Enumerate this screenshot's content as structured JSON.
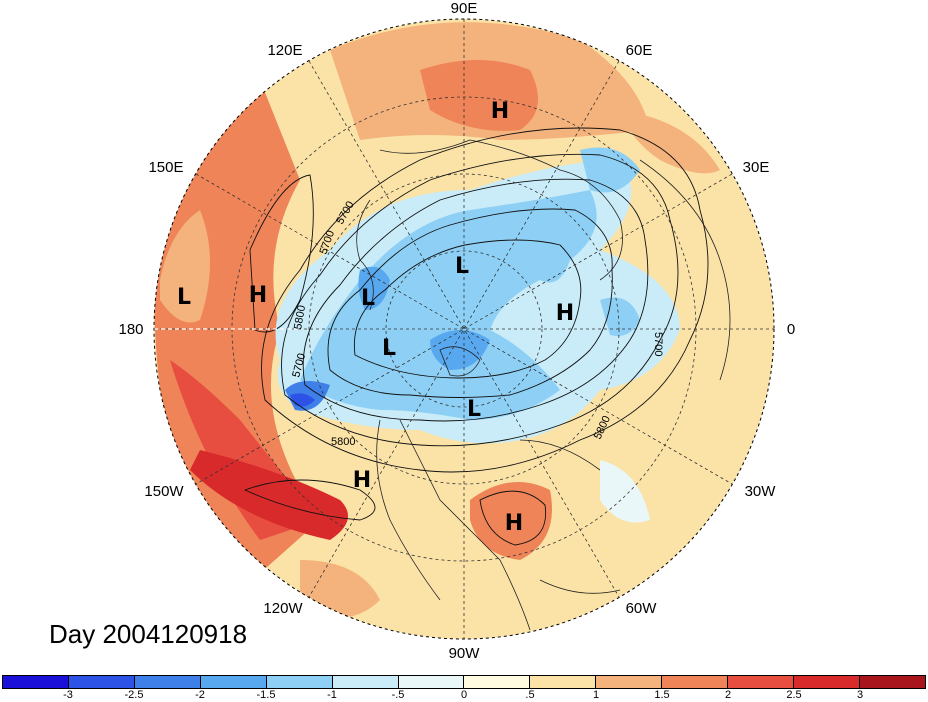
{
  "title": "Day 2004120918",
  "longitude_labels": [
    "90E",
    "60E",
    "30E",
    "0",
    "30W",
    "60W",
    "90W",
    "120W",
    "150W",
    "180",
    "150E",
    "120E"
  ],
  "contour_labels": [
    "5700",
    "5800",
    "5700",
    "5800",
    "5700",
    "5800",
    "5700"
  ],
  "pressure_centers": [
    {
      "type": "H",
      "region": "Siberia"
    },
    {
      "type": "H",
      "region": "Western Russia"
    },
    {
      "type": "H",
      "region": "Bering Sea"
    },
    {
      "type": "L",
      "region": "Kamchatka / North Pacific"
    },
    {
      "type": "L",
      "region": "Arctic Ocean"
    },
    {
      "type": "L",
      "region": "East Siberian Sea"
    },
    {
      "type": "L",
      "region": "Beaufort Sea"
    },
    {
      "type": "L",
      "region": "Baffin Bay"
    },
    {
      "type": "H",
      "region": "Eastern North Pacific"
    },
    {
      "type": "H",
      "region": "Western Atlantic / Florida"
    }
  ],
  "colorbar": {
    "colors": [
      "#1a10d8",
      "#2d52e6",
      "#3f7fe8",
      "#58a8ef",
      "#8ed0f5",
      "#c9ecf8",
      "#eaf7f8",
      "#fffbe1",
      "#fbe3a8",
      "#f4b27c",
      "#ee8458",
      "#e84e3f",
      "#d92a2b",
      "#a8151d"
    ],
    "tick_labels": [
      "-3",
      "-2.5",
      "-2",
      "-1.5",
      "-1",
      "-.5",
      "0",
      ".5",
      "1",
      "1.5",
      "2",
      "2.5",
      "3"
    ]
  }
}
